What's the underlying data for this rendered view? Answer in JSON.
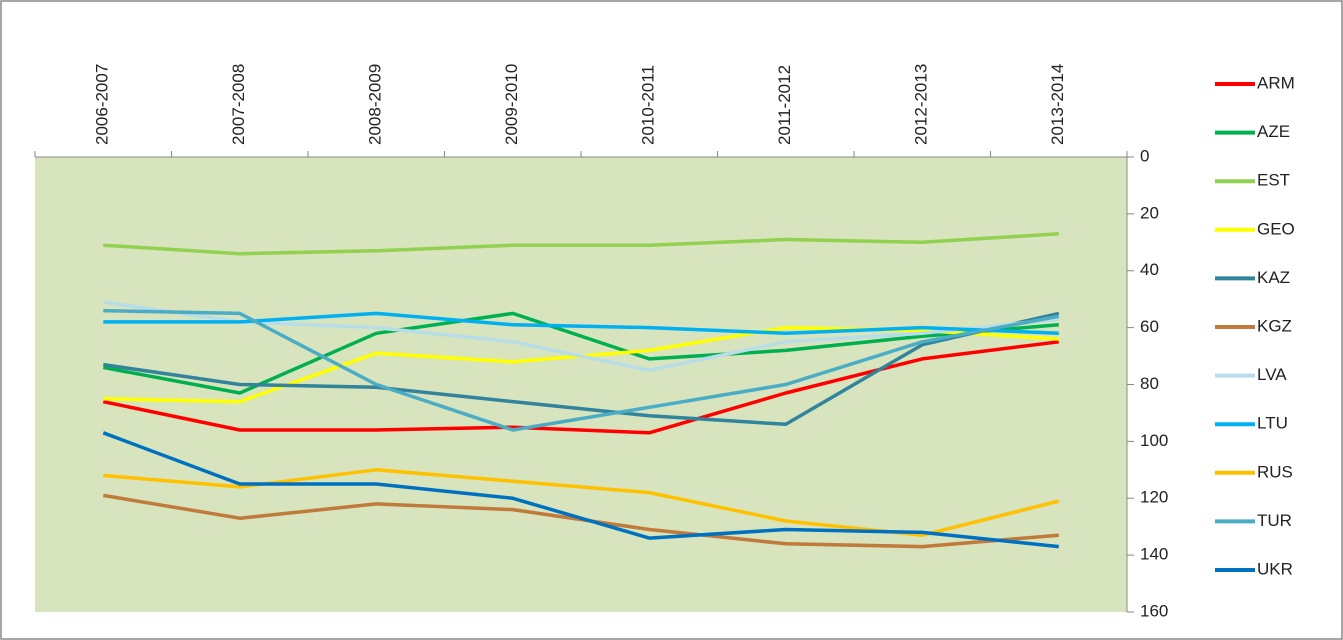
{
  "chart_data": {
    "type": "line",
    "categories": [
      "2006-2007",
      "2007-2008",
      "2008-2009",
      "2009-2010",
      "2010-2011",
      "2011-2012",
      "2012-2013",
      "2013-2014"
    ],
    "series": [
      {
        "name": "ARM",
        "color": "#ff0000",
        "values": [
          86,
          96,
          96,
          95,
          97,
          83,
          71,
          65
        ]
      },
      {
        "name": "AZE",
        "color": "#00b050",
        "values": [
          74,
          83,
          62,
          55,
          71,
          68,
          63,
          59
        ]
      },
      {
        "name": "EST",
        "color": "#92d050",
        "values": [
          31,
          34,
          33,
          31,
          31,
          29,
          30,
          27
        ]
      },
      {
        "name": "GEO",
        "color": "#ffff00",
        "values": [
          85,
          86,
          69,
          72,
          68,
          60,
          61,
          64
        ]
      },
      {
        "name": "KAZ",
        "color": "#31849b",
        "values": [
          73,
          80,
          81,
          86,
          91,
          94,
          66,
          55
        ]
      },
      {
        "name": "KGZ",
        "color": "#c07a3a",
        "values": [
          119,
          127,
          122,
          124,
          131,
          136,
          137,
          133
        ]
      },
      {
        "name": "LVA",
        "color": "#b7dde8",
        "values": [
          51,
          58,
          60,
          65,
          75,
          65,
          62,
          57
        ]
      },
      {
        "name": "LTU",
        "color": "#00b0f0",
        "values": [
          58,
          58,
          55,
          59,
          60,
          62,
          60,
          62
        ]
      },
      {
        "name": "RUS",
        "color": "#ffc000",
        "values": [
          112,
          116,
          110,
          114,
          118,
          128,
          133,
          121
        ]
      },
      {
        "name": "TUR",
        "color": "#4bacc6",
        "values": [
          54,
          55,
          80,
          96,
          88,
          80,
          65,
          56
        ]
      },
      {
        "name": "UKR",
        "color": "#0070c0",
        "values": [
          97,
          115,
          115,
          120,
          134,
          131,
          132,
          137
        ]
      }
    ],
    "ylim": [
      0,
      160
    ],
    "yticks": [
      0,
      20,
      40,
      60,
      80,
      100,
      120,
      140,
      160
    ],
    "y_inverted": true,
    "y_axis_position": "right",
    "x_axis_position": "top",
    "plot_background": "#d7e4bd",
    "legend": "right"
  }
}
